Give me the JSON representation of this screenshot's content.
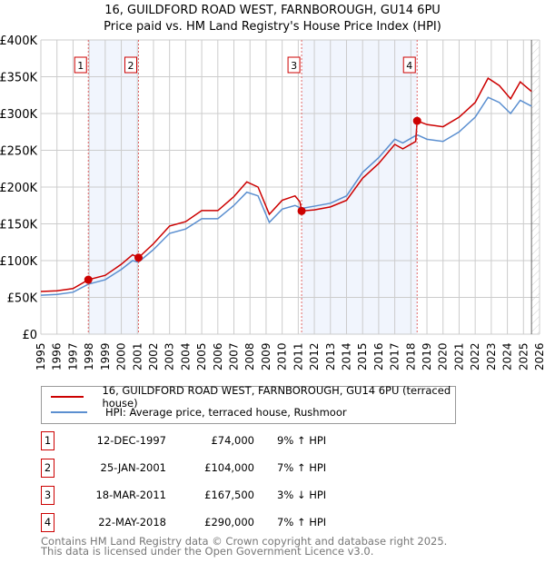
{
  "chart_data": {
    "type": "line",
    "title": "16, GUILDFORD ROAD WEST, FARNBOROUGH, GU14 6PU",
    "subtitle": "Price paid vs. HM Land Registry's House Price Index (HPI)",
    "xlim": [
      1995,
      2026
    ],
    "ylim": [
      0,
      400000
    ],
    "x_ticks": [
      "1995",
      "1996",
      "1997",
      "1998",
      "1999",
      "2000",
      "2001",
      "2002",
      "2003",
      "2004",
      "2005",
      "2006",
      "2007",
      "2008",
      "2009",
      "2010",
      "2011",
      "2012",
      "2013",
      "2014",
      "2015",
      "2016",
      "2017",
      "2018",
      "2019",
      "2020",
      "2021",
      "2022",
      "2023",
      "2024",
      "2025",
      "2026"
    ],
    "y_ticks": [
      {
        "v": 0,
        "label": "£0"
      },
      {
        "v": 50000,
        "label": "£50K"
      },
      {
        "v": 100000,
        "label": "£100K"
      },
      {
        "v": 150000,
        "label": "£150K"
      },
      {
        "v": 200000,
        "label": "£200K"
      },
      {
        "v": 250000,
        "label": "£250K"
      },
      {
        "v": 300000,
        "label": "£300K"
      },
      {
        "v": 350000,
        "label": "£350K"
      },
      {
        "v": 400000,
        "label": "£400K"
      }
    ],
    "grid": true,
    "legend_placement": "bottom",
    "series": [
      {
        "name": "16, GUILDFORD ROAD WEST, FARNBOROUGH, GU14 6PU (terraced house)",
        "color": "#cc0000",
        "x": [
          1995,
          1996,
          1997,
          1997.95,
          1999,
          2000,
          2000.7,
          2001.07,
          2002,
          2003,
          2004,
          2005,
          2006,
          2007,
          2007.8,
          2008.5,
          2009.2,
          2010,
          2010.8,
          2011.1,
          2011.21,
          2012,
          2013,
          2014,
          2015,
          2016,
          2017,
          2017.5,
          2018.3,
          2018.39,
          2019,
          2020,
          2021,
          2022,
          2022.8,
          2023.5,
          2024.2,
          2024.8,
          2025.5
        ],
        "y": [
          58000,
          59000,
          62000,
          74000,
          80000,
          95000,
          108000,
          104000,
          123000,
          147000,
          153000,
          168000,
          168000,
          187000,
          207000,
          200000,
          163000,
          182000,
          188000,
          180000,
          167500,
          169000,
          173000,
          182000,
          212000,
          232000,
          258000,
          252000,
          262000,
          290000,
          285000,
          282000,
          295000,
          315000,
          348000,
          338000,
          320000,
          343000,
          330000
        ]
      },
      {
        "name": "HPI: Average price, terraced house, Rushmoor",
        "color": "#5b8fd0",
        "x": [
          1995,
          1996,
          1997,
          1997.95,
          1999,
          2000,
          2000.7,
          2001.07,
          2002,
          2003,
          2004,
          2005,
          2006,
          2007,
          2007.8,
          2008.5,
          2009.2,
          2010,
          2010.8,
          2011.1,
          2011.21,
          2012,
          2013,
          2014,
          2015,
          2016,
          2017,
          2017.5,
          2018.3,
          2018.39,
          2019,
          2020,
          2021,
          2022,
          2022.8,
          2023.5,
          2024.2,
          2024.8,
          2025.5
        ],
        "y": [
          53000,
          54000,
          57000,
          68000,
          74000,
          88000,
          100000,
          98000,
          115000,
          137000,
          143000,
          157000,
          157000,
          175000,
          193000,
          188000,
          152000,
          170000,
          175000,
          172000,
          171000,
          174000,
          178000,
          188000,
          220000,
          240000,
          265000,
          260000,
          270000,
          271000,
          265000,
          262000,
          275000,
          295000,
          322000,
          315000,
          300000,
          318000,
          310000
        ]
      }
    ],
    "sales": [
      {
        "n": "1",
        "x": 1997.95,
        "y": 74000
      },
      {
        "n": "2",
        "x": 2001.07,
        "y": 104000
      },
      {
        "n": "3",
        "x": 2011.21,
        "y": 167500
      },
      {
        "n": "4",
        "x": 2018.39,
        "y": 290000
      }
    ],
    "shaded_ranges": [
      [
        1997.95,
        2001.07
      ],
      [
        2011.21,
        2018.39
      ]
    ],
    "forecast_start": 2025.5
  },
  "table": [
    {
      "n": "1",
      "date": "12-DEC-1997",
      "price": "£74,000",
      "hpi": "9% ↑ HPI"
    },
    {
      "n": "2",
      "date": "25-JAN-2001",
      "price": "£104,000",
      "hpi": "7% ↑ HPI"
    },
    {
      "n": "3",
      "date": "18-MAR-2011",
      "price": "£167,500",
      "hpi": "3% ↓ HPI"
    },
    {
      "n": "4",
      "date": "22-MAY-2018",
      "price": "£290,000",
      "hpi": "7% ↑ HPI"
    }
  ],
  "footer": {
    "line1": "Contains HM Land Registry data © Crown copyright and database right 2025.",
    "line2": "This data is licensed under the Open Government Licence v3.0."
  }
}
